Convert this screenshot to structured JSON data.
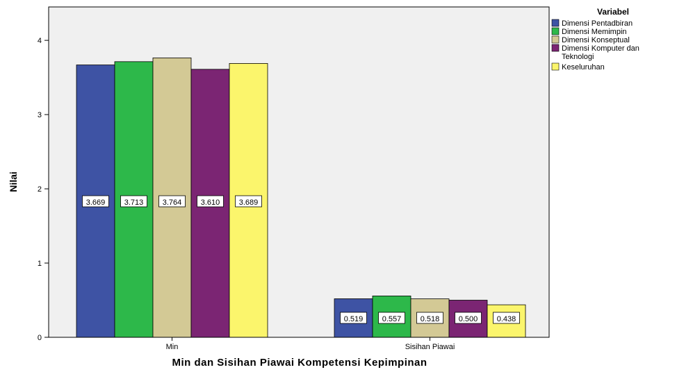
{
  "chart_data": {
    "type": "bar",
    "categories": [
      "Min",
      "Sisihan Piawai"
    ],
    "series": [
      {
        "name": "Dimensi Pentadbiran",
        "values": [
          3.669,
          0.519
        ],
        "color": "#3e53a4"
      },
      {
        "name": "Dimensi Memimpin",
        "values": [
          3.713,
          0.557
        ],
        "color": "#2db84a"
      },
      {
        "name": "Dimensi Konseptual",
        "values": [
          3.764,
          0.518
        ],
        "color": "#d3c995"
      },
      {
        "name": "Dimensi Komputer dan Teknologi",
        "values": [
          3.61,
          0.5
        ],
        "color": "#7b2573"
      },
      {
        "name": "Keseluruhan",
        "values": [
          3.689,
          0.438
        ],
        "color": "#fbf56c"
      }
    ],
    "data_labels": [
      [
        "3.669",
        "0.519"
      ],
      [
        "3.713",
        "0.557"
      ],
      [
        "3.764",
        "0.518"
      ],
      [
        "3.610",
        "0.500"
      ],
      [
        "3.689",
        "0.438"
      ]
    ],
    "yticks": [
      "0",
      "1",
      "2",
      "3",
      "4"
    ],
    "ylim": [
      0,
      4.45
    ],
    "xlabel": "Min dan Sisihan Piawai Kompetensi Kepimpinan",
    "ylabel": "Nilai",
    "legend_title": "Variabel",
    "legend_labels": [
      "Dimensi Pentadbiran",
      "Dimensi Memimpin",
      "Dimensi Konseptual",
      [
        "Dimensi Komputer dan",
        "Teknologi"
      ],
      "Keseluruhan"
    ],
    "legend_position": "top-right",
    "grid": false,
    "background": "#f0f0f0"
  }
}
